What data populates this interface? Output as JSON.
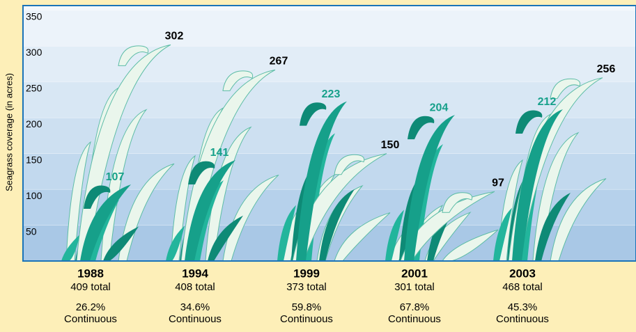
{
  "chart_data": {
    "type": "seagrass",
    "y_label": "Seagrass coverage (in acres)",
    "categories": [
      "1988",
      "1994",
      "1999",
      "2001",
      "2003"
    ],
    "totals": [
      "409 total",
      "408 total",
      "373 total",
      "301 total",
      "468 total"
    ],
    "percents": [
      "26.2%",
      "34.6%",
      "59.8%",
      "67.8%",
      "45.3%"
    ],
    "percent_notes": [
      "Continuous",
      "Continuous",
      "Continuous",
      "Continuous",
      "Continuous"
    ],
    "series": [
      {
        "color": "#eaf6ec",
        "label_color": "#000000",
        "values": [
          302,
          267,
          150,
          97,
          256
        ]
      },
      {
        "color": "#16a08a",
        "label_color": "#16a08a",
        "values": [
          107,
          141,
          223,
          204,
          212
        ]
      }
    ],
    "ylim": [
      0,
      350
    ],
    "yticks": [
      50,
      100,
      150,
      200,
      250,
      300,
      350
    ],
    "grid": true
  }
}
